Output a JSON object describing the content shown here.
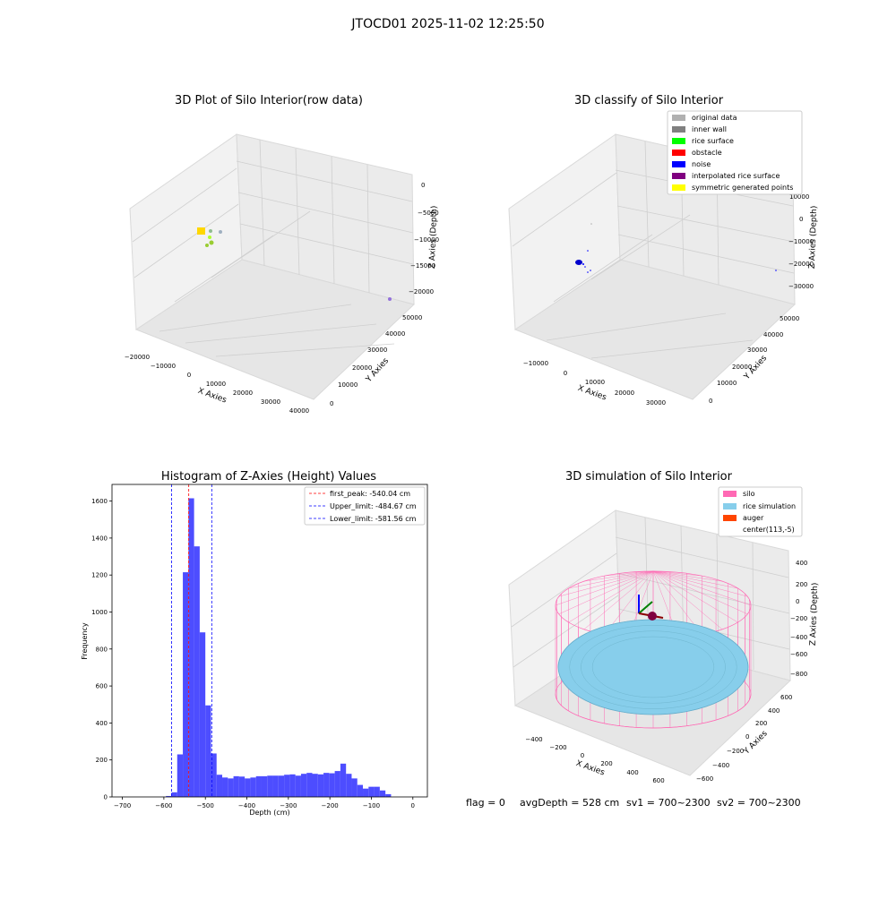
{
  "suptitle": "JTOCD01 2025-11-02 12:25:50",
  "footer": {
    "flag": "flag = 0",
    "avg_depth": "avgDepth = 528 cm",
    "sv1": "sv1 = 700~2300",
    "sv2": "sv2 = 700~2300"
  },
  "colors": {
    "hist_bar": "#4d4dff",
    "first_peak": "#ff0000",
    "limit": "#0000ff",
    "silo": "#ff69b4",
    "rice": "#87ceeb",
    "auger": "#ff4500"
  },
  "chart_data": [
    {
      "type": "scatter",
      "projection": "3d",
      "title": "3D Plot of Silo Interior(row data)",
      "xlabel": "X Axies",
      "ylabel": "Y Axies",
      "zlabel": "Z Axies (Depth)",
      "xticks": [
        "−20000",
        "−10000",
        "0",
        "10000",
        "20000",
        "30000",
        "40000"
      ],
      "yticks": [
        "0",
        "10000",
        "20000",
        "30000",
        "40000",
        "50000"
      ],
      "zticks": [
        "0",
        "−5000",
        "−10000",
        "−15000",
        "−20000"
      ],
      "grid": true
    },
    {
      "type": "scatter",
      "projection": "3d",
      "title": "3D classify of Silo Interior",
      "xlabel": "X Axies",
      "ylabel": "Y Axies",
      "zlabel": "Z Axies (Depth)",
      "xticks": [
        "−10000",
        "0",
        "10000",
        "20000",
        "30000"
      ],
      "yticks": [
        "0",
        "10000",
        "20000",
        "30000",
        "40000",
        "50000"
      ],
      "zticks": [
        "10000",
        "0",
        "−10000",
        "−20000",
        "−30000"
      ],
      "legend_position": "top-right",
      "legend": [
        {
          "label": "original data",
          "color": "#b0b0b0"
        },
        {
          "label": "inner wall",
          "color": "#808080"
        },
        {
          "label": "rice surface",
          "color": "#00ff00"
        },
        {
          "label": "obstacle",
          "color": "#ff0000"
        },
        {
          "label": "noise",
          "color": "#0000ff"
        },
        {
          "label": "interpolated rice surface",
          "color": "#800080"
        },
        {
          "label": "symmetric generated points",
          "color": "#ffff00"
        }
      ],
      "grid": true
    },
    {
      "type": "bar",
      "title": "Histogram of Z-Axies (Height) Values",
      "xlabel": "Depth (cm)",
      "ylabel": "Frequency",
      "xlim": [
        -725,
        35
      ],
      "ylim": [
        0,
        1690
      ],
      "xticks": [
        "−700",
        "−600",
        "−500",
        "−400",
        "−300",
        "−200",
        "−100",
        "0"
      ],
      "yticks": [
        "0",
        "200",
        "400",
        "600",
        "800",
        "1000",
        "1200",
        "1400",
        "1600"
      ],
      "bin_width": 13.56,
      "bin_start": -595,
      "values": [
        5,
        25,
        230,
        1215,
        1615,
        1355,
        890,
        495,
        235,
        120,
        105,
        100,
        112,
        110,
        100,
        105,
        112,
        112,
        115,
        115,
        115,
        120,
        122,
        115,
        125,
        130,
        125,
        122,
        130,
        128,
        140,
        180,
        125,
        100,
        65,
        45,
        55,
        55,
        35,
        15
      ],
      "lines": [
        {
          "label": "first_peak: -540.04 cm",
          "x": -540.04,
          "color": "#ff0000"
        },
        {
          "label": "Upper_limit: -484.67 cm",
          "x": -484.67,
          "color": "#0000ff"
        },
        {
          "label": "Lower_limit: -581.56 cm",
          "x": -581.56,
          "color": "#0000ff"
        }
      ],
      "legend_position": "top-right",
      "grid": false
    },
    {
      "type": "scatter",
      "projection": "3d",
      "title": "3D simulation of Silo Interior",
      "xlabel": "X Axies",
      "ylabel": "Y Axies",
      "zlabel": "Z Axies (Depth)",
      "xticks": [
        "−400",
        "−200",
        "0",
        "200",
        "400",
        "600"
      ],
      "yticks": [
        "−600",
        "−400",
        "−200",
        "0",
        "200",
        "400",
        "600"
      ],
      "zticks": [
        "400",
        "200",
        "0",
        "−200",
        "−400",
        "−600",
        "−800"
      ],
      "legend_position": "top-right",
      "legend": [
        {
          "label": "silo",
          "color": "#ff69b4"
        },
        {
          "label": "rice simulation",
          "color": "#87ceeb"
        },
        {
          "label": "auger",
          "color": "#ff4500"
        },
        {
          "label": "center(113,-5)",
          "color": ""
        }
      ],
      "grid": true
    }
  ]
}
